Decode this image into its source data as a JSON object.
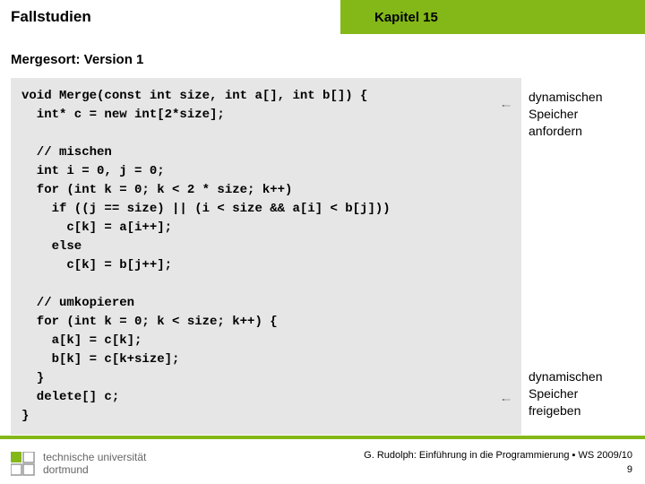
{
  "header": {
    "left": "Fallstudien",
    "right": "Kapitel 15"
  },
  "subhead": "Mergesort: Version 1",
  "code": "void Merge(const int size, int a[], int b[]) {\n  int* c = new int[2*size];\n\n  // mischen\n  int i = 0, j = 0;\n  for (int k = 0; k < 2 * size; k++)\n    if ((j == size) || (i < size && a[i] < b[j]))\n      c[k] = a[i++];\n    else\n      c[k] = b[j++];\n\n  // umkopieren\n  for (int k = 0; k < size; k++) {\n    a[k] = c[k];\n    b[k] = c[k+size];\n  }\n  delete[] c;\n}",
  "annotations": {
    "top": "dynamischen\nSpeicher\nanfordern",
    "bottom": "dynamischen\nSpeicher\nfreigeben"
  },
  "footer": {
    "line1": "G. Rudolph: Einführung in die Programmierung ▪ WS 2009/10",
    "line2": "9"
  },
  "logo": {
    "line1": "technische universität",
    "line2": "dortmund"
  },
  "colors": {
    "accent": "#84b819",
    "codebg": "#e6e6e6"
  }
}
